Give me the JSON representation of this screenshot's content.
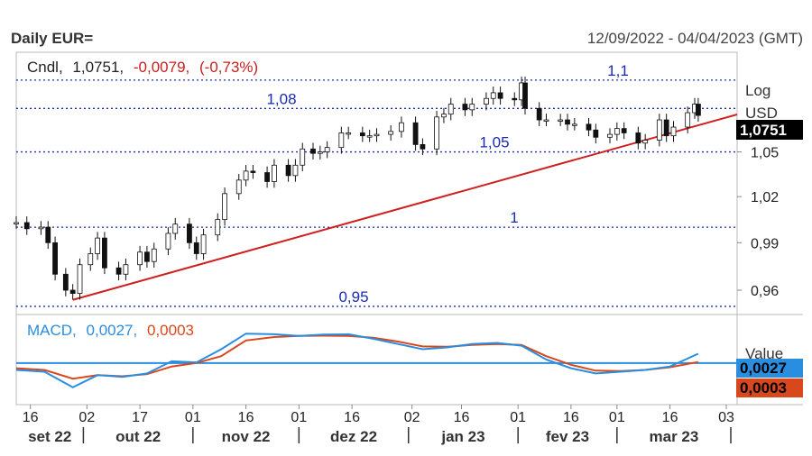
{
  "header": {
    "title": "Daily EUR=",
    "date_range": "12/09/2022 - 04/04/2023 (GMT)"
  },
  "legend": {
    "series_label": "Cndl,",
    "last": "1,0751,",
    "change": "-0,0079,",
    "change_pct": "(-0,73%)",
    "macd_label": "MACD,",
    "macd_value": "0,0027,",
    "signal_value": "0,0003"
  },
  "axis": {
    "scale_label": "Log",
    "unit_label": "USD",
    "value_label": "Value"
  },
  "tags": {
    "price": "1,0751",
    "macd": "0,0027",
    "signal": "0,0003"
  },
  "colors": {
    "price_tag_bg": "#000000",
    "macd_line": "#2a8ee0",
    "signal_line": "#d9481c",
    "trendline": "#d01f1f",
    "level_lines": "#1a2bb0",
    "change_text": "#c81e1e"
  },
  "chart_data": [
    {
      "type": "candlestick",
      "title": "Daily EUR=",
      "ylabel": "USD",
      "yscale": "log",
      "ylim": [
        0.945,
        1.12
      ],
      "x_range": [
        "2022-09-12",
        "2023-04-04"
      ],
      "y_ticks": [
        "0,96",
        "0,99",
        "1,02",
        "1,05",
        "1,0751"
      ],
      "x_ticks": [
        "16",
        "02",
        "17",
        "01",
        "16",
        "01",
        "16",
        "02",
        "16",
        "01",
        "16",
        "01",
        "16",
        "03"
      ],
      "months": [
        "set 22",
        "out 22",
        "nov 22",
        "dez 22",
        "jan 23",
        "fev 23",
        "mar 23"
      ],
      "levels": [
        {
          "value": 1.1,
          "label": "1,1"
        },
        {
          "value": 1.08,
          "label": "1,08"
        },
        {
          "value": 1.05,
          "label": "1,05"
        },
        {
          "value": 1.0,
          "label": "1"
        },
        {
          "value": 0.95,
          "label": "0,95"
        }
      ],
      "trendline": [
        [
          "2022-09-28",
          0.954
        ],
        [
          "2023-03-24",
          1.072
        ]
      ],
      "points": [
        [
          "2022-09-12",
          1.003
        ],
        [
          "2022-09-15",
          0.999
        ],
        [
          "2022-09-19",
          1.0
        ],
        [
          "2022-09-21",
          0.99
        ],
        [
          "2022-09-23",
          0.97
        ],
        [
          "2022-09-26",
          0.96
        ],
        [
          "2022-09-28",
          0.958
        ],
        [
          "2022-09-30",
          0.976
        ],
        [
          "2022-10-03",
          0.983
        ],
        [
          "2022-10-05",
          0.993
        ],
        [
          "2022-10-07",
          0.974
        ],
        [
          "2022-10-11",
          0.97
        ],
        [
          "2022-10-13",
          0.976
        ],
        [
          "2022-10-17",
          0.984
        ],
        [
          "2022-10-19",
          0.978
        ],
        [
          "2022-10-21",
          0.986
        ],
        [
          "2022-10-25",
          0.996
        ],
        [
          "2022-10-27",
          1.002
        ],
        [
          "2022-10-31",
          0.99
        ],
        [
          "2022-11-02",
          0.983
        ],
        [
          "2022-11-04",
          0.995
        ],
        [
          "2022-11-08",
          1.005
        ],
        [
          "2022-11-10",
          1.022
        ],
        [
          "2022-11-14",
          1.031
        ],
        [
          "2022-11-16",
          1.037
        ],
        [
          "2022-11-18",
          1.036
        ],
        [
          "2022-11-22",
          1.03
        ],
        [
          "2022-11-24",
          1.041
        ],
        [
          "2022-11-28",
          1.034
        ],
        [
          "2022-11-30",
          1.041
        ],
        [
          "2022-12-02",
          1.052
        ],
        [
          "2022-12-05",
          1.049
        ],
        [
          "2022-12-07",
          1.05
        ],
        [
          "2022-12-09",
          1.053
        ],
        [
          "2022-12-13",
          1.063
        ],
        [
          "2022-12-15",
          1.063
        ],
        [
          "2022-12-19",
          1.061
        ],
        [
          "2022-12-21",
          1.061
        ],
        [
          "2022-12-23",
          1.062
        ],
        [
          "2022-12-27",
          1.064
        ],
        [
          "2022-12-30",
          1.07
        ],
        [
          "2023-01-03",
          1.055
        ],
        [
          "2023-01-05",
          1.052
        ],
        [
          "2023-01-09",
          1.074
        ],
        [
          "2023-01-11",
          1.076
        ],
        [
          "2023-01-13",
          1.083
        ],
        [
          "2023-01-17",
          1.079
        ],
        [
          "2023-01-19",
          1.083
        ],
        [
          "2023-01-23",
          1.087
        ],
        [
          "2023-01-25",
          1.091
        ],
        [
          "2023-01-27",
          1.087
        ],
        [
          "2023-01-31",
          1.086
        ],
        [
          "2023-02-02",
          1.098
        ],
        [
          "2023-02-03",
          1.08
        ],
        [
          "2023-02-07",
          1.072
        ],
        [
          "2023-02-09",
          1.072
        ],
        [
          "2023-02-13",
          1.072
        ],
        [
          "2023-02-15",
          1.069
        ],
        [
          "2023-02-17",
          1.069
        ],
        [
          "2023-02-21",
          1.065
        ],
        [
          "2023-02-23",
          1.06
        ],
        [
          "2023-02-27",
          1.062
        ],
        [
          "2023-03-01",
          1.066
        ],
        [
          "2023-03-03",
          1.063
        ],
        [
          "2023-03-07",
          1.056
        ],
        [
          "2023-03-09",
          1.058
        ],
        [
          "2023-03-13",
          1.072
        ],
        [
          "2023-03-15",
          1.061
        ],
        [
          "2023-03-17",
          1.067
        ],
        [
          "2023-03-21",
          1.077
        ],
        [
          "2023-03-23",
          1.083
        ],
        [
          "2023-03-24",
          1.0751
        ]
      ]
    },
    {
      "type": "line",
      "title": "MACD",
      "ylabel": "Value",
      "ylim": [
        -0.012,
        0.014
      ],
      "series": [
        {
          "name": "MACD",
          "color": "#2a8ee0",
          "points": [
            [
              "2022-09-12",
              -0.002
            ],
            [
              "2022-09-20",
              -0.0025
            ],
            [
              "2022-09-28",
              -0.007
            ],
            [
              "2022-10-05",
              -0.0035
            ],
            [
              "2022-10-12",
              -0.004
            ],
            [
              "2022-10-19",
              -0.003
            ],
            [
              "2022-10-26",
              0.0005
            ],
            [
              "2022-11-02",
              0.0002
            ],
            [
              "2022-11-09",
              0.004
            ],
            [
              "2022-11-16",
              0.0085
            ],
            [
              "2022-11-24",
              0.0083
            ],
            [
              "2022-12-01",
              0.0078
            ],
            [
              "2022-12-08",
              0.0082
            ],
            [
              "2022-12-15",
              0.0083
            ],
            [
              "2022-12-22",
              0.007
            ],
            [
              "2022-12-29",
              0.0055
            ],
            [
              "2023-01-05",
              0.004
            ],
            [
              "2023-01-12",
              0.0045
            ],
            [
              "2023-01-19",
              0.0055
            ],
            [
              "2023-01-26",
              0.0058
            ],
            [
              "2023-02-02",
              0.005
            ],
            [
              "2023-02-09",
              0.001
            ],
            [
              "2023-02-16",
              -0.0015
            ],
            [
              "2023-02-23",
              -0.003
            ],
            [
              "2023-03-02",
              -0.0025
            ],
            [
              "2023-03-09",
              -0.002
            ],
            [
              "2023-03-16",
              -0.001
            ],
            [
              "2023-03-24",
              0.0027
            ]
          ]
        },
        {
          "name": "Signal",
          "color": "#d9481c",
          "points": [
            [
              "2022-09-12",
              -0.0015
            ],
            [
              "2022-09-20",
              -0.002
            ],
            [
              "2022-09-28",
              -0.0045
            ],
            [
              "2022-10-05",
              -0.0035
            ],
            [
              "2022-10-12",
              -0.0038
            ],
            [
              "2022-10-19",
              -0.0032
            ],
            [
              "2022-10-26",
              -0.001
            ],
            [
              "2022-11-02",
              0.0
            ],
            [
              "2022-11-09",
              0.002
            ],
            [
              "2022-11-16",
              0.0065
            ],
            [
              "2022-11-24",
              0.0075
            ],
            [
              "2022-12-01",
              0.0078
            ],
            [
              "2022-12-08",
              0.0079
            ],
            [
              "2022-12-15",
              0.0078
            ],
            [
              "2022-12-22",
              0.0073
            ],
            [
              "2022-12-29",
              0.0062
            ],
            [
              "2023-01-05",
              0.0048
            ],
            [
              "2023-01-12",
              0.0047
            ],
            [
              "2023-01-19",
              0.0052
            ],
            [
              "2023-01-26",
              0.0055
            ],
            [
              "2023-02-02",
              0.0052
            ],
            [
              "2023-02-09",
              0.002
            ],
            [
              "2023-02-16",
              -0.0005
            ],
            [
              "2023-02-23",
              -0.0022
            ],
            [
              "2023-03-02",
              -0.0023
            ],
            [
              "2023-03-09",
              -0.002
            ],
            [
              "2023-03-16",
              -0.0012
            ],
            [
              "2023-03-24",
              0.0003
            ]
          ]
        }
      ]
    }
  ]
}
